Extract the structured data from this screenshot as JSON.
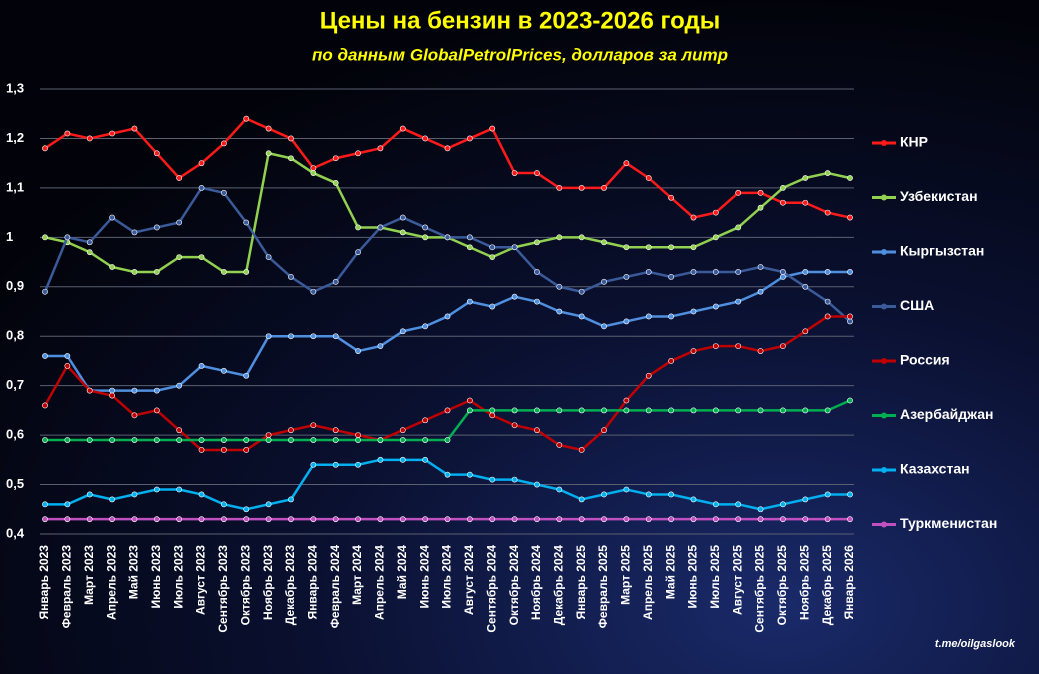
{
  "chart_data": {
    "type": "line",
    "title": "Цены на бензин в 2023-2026  годы",
    "subtitle": "по данным GlobalPetrolPrices,  долларов за литр",
    "source": "t.me/oilgaslook",
    "categories": [
      "Январь 2023",
      "Февраль 2023",
      "Март 2023",
      "Апрель 2023",
      "Май 2023",
      "Июнь 2023",
      "Июль 2023",
      "Август 2023",
      "Сентябрь 2023",
      "Октябрь 2023",
      "Ноябрь 2023",
      "Декабрь 2023",
      "Январь 2024",
      "Февраль 2024",
      "Март 2024",
      "Апрель 2024",
      "Май 2024",
      "Июнь 2024",
      "Июль 2024",
      "Август 2024",
      "Сентябрь 2024",
      "Октябрь 2024",
      "Ноябрь 2024",
      "Декабрь 2024",
      "Январь 2025",
      "Февраль 2025",
      "Март 2025",
      "Апрель 2025",
      "Май 2025",
      "Июнь 2025",
      "Июль 2025",
      "Август 2025",
      "Сентябрь 2025",
      "Октябрь 2025",
      "Ноябрь 2025",
      "Декабрь 2025",
      "Январь 2026"
    ],
    "ylim": [
      0.4,
      1.3
    ],
    "yticks": [
      {
        "value": 0.4,
        "label": "0,4"
      },
      {
        "value": 0.5,
        "label": "0,5"
      },
      {
        "value": 0.6,
        "label": "0,6"
      },
      {
        "value": 0.7,
        "label": "0,7"
      },
      {
        "value": 0.8,
        "label": "0,8"
      },
      {
        "value": 0.9,
        "label": "0,9"
      },
      1,
      {
        "value": 1.1,
        "label": "1,1"
      },
      {
        "value": 1.2,
        "label": "1,2"
      },
      {
        "value": 1.3,
        "label": "1,3"
      }
    ],
    "grid": true,
    "legend": "right",
    "series": [
      {
        "name": "КНР",
        "color": "#ff1a1a",
        "values": [
          1.18,
          1.21,
          1.2,
          1.21,
          1.22,
          1.17,
          1.12,
          1.15,
          1.19,
          1.24,
          1.22,
          1.2,
          1.14,
          1.16,
          1.17,
          1.18,
          1.22,
          1.2,
          1.18,
          1.2,
          1.22,
          1.13,
          1.13,
          1.1,
          1.1,
          1.1,
          1.15,
          1.12,
          1.08,
          1.04,
          1.05,
          1.09,
          1.09,
          1.07,
          1.07,
          1.05,
          1.04
        ]
      },
      {
        "name": "Узбекистан",
        "color": "#92d050",
        "values": [
          1.0,
          0.99,
          0.97,
          0.94,
          0.93,
          0.93,
          0.96,
          0.96,
          0.93,
          0.93,
          1.17,
          1.16,
          1.13,
          1.11,
          1.02,
          1.02,
          1.01,
          1.0,
          1.0,
          0.98,
          0.96,
          0.98,
          0.99,
          1.0,
          1.0,
          0.99,
          0.98,
          0.98,
          0.98,
          0.98,
          1.0,
          1.02,
          1.06,
          1.1,
          1.12,
          1.13,
          1.12
        ]
      },
      {
        "name": "Кыргызстан",
        "color": "#4f8fe0",
        "values": [
          0.76,
          0.76,
          0.69,
          0.69,
          0.69,
          0.69,
          0.7,
          0.74,
          0.73,
          0.72,
          0.8,
          0.8,
          0.8,
          0.8,
          0.77,
          0.78,
          0.81,
          0.82,
          0.84,
          0.87,
          0.86,
          0.88,
          0.87,
          0.85,
          0.84,
          0.82,
          0.83,
          0.84,
          0.84,
          0.85,
          0.86,
          0.87,
          0.89,
          0.92,
          0.93,
          0.93,
          0.93
        ]
      },
      {
        "name": "США",
        "color": "#3a5a9a",
        "values": [
          0.89,
          1.0,
          0.99,
          1.04,
          1.01,
          1.02,
          1.03,
          1.1,
          1.09,
          1.03,
          0.96,
          0.92,
          0.89,
          0.91,
          0.97,
          1.02,
          1.04,
          1.02,
          1.0,
          1.0,
          0.98,
          0.98,
          0.93,
          0.9,
          0.89,
          0.91,
          0.92,
          0.93,
          0.92,
          0.93,
          0.93,
          0.93,
          0.94,
          0.93,
          0.9,
          0.87,
          0.83
        ]
      },
      {
        "name": "Россия",
        "color": "#c00000",
        "values": [
          0.66,
          0.74,
          0.69,
          0.68,
          0.64,
          0.65,
          0.61,
          0.57,
          0.57,
          0.57,
          0.6,
          0.61,
          0.62,
          0.61,
          0.6,
          0.59,
          0.61,
          0.63,
          0.65,
          0.67,
          0.64,
          0.62,
          0.61,
          0.58,
          0.57,
          0.61,
          0.67,
          0.72,
          0.75,
          0.77,
          0.78,
          0.78,
          0.77,
          0.78,
          0.81,
          0.84,
          0.84
        ]
      },
      {
        "name": "Азербайджан",
        "color": "#00b050",
        "values": [
          0.59,
          0.59,
          0.59,
          0.59,
          0.59,
          0.59,
          0.59,
          0.59,
          0.59,
          0.59,
          0.59,
          0.59,
          0.59,
          0.59,
          0.59,
          0.59,
          0.59,
          0.59,
          0.59,
          0.65,
          0.65,
          0.65,
          0.65,
          0.65,
          0.65,
          0.65,
          0.65,
          0.65,
          0.65,
          0.65,
          0.65,
          0.65,
          0.65,
          0.65,
          0.65,
          0.65,
          0.67
        ]
      },
      {
        "name": "Казахстан",
        "color": "#00b0f0",
        "values": [
          0.46,
          0.46,
          0.48,
          0.47,
          0.48,
          0.49,
          0.49,
          0.48,
          0.46,
          0.45,
          0.46,
          0.47,
          0.54,
          0.54,
          0.54,
          0.55,
          0.55,
          0.55,
          0.52,
          0.52,
          0.51,
          0.51,
          0.5,
          0.49,
          0.47,
          0.48,
          0.49,
          0.48,
          0.48,
          0.47,
          0.46,
          0.46,
          0.45,
          0.46,
          0.47,
          0.48,
          0.48
        ]
      },
      {
        "name": "Туркменистан",
        "color": "#c050c0",
        "values": [
          0.43,
          0.43,
          0.43,
          0.43,
          0.43,
          0.43,
          0.43,
          0.43,
          0.43,
          0.43,
          0.43,
          0.43,
          0.43,
          0.43,
          0.43,
          0.43,
          0.43,
          0.43,
          0.43,
          0.43,
          0.43,
          0.43,
          0.43,
          0.43,
          0.43,
          0.43,
          0.43,
          0.43,
          0.43,
          0.43,
          0.43,
          0.43,
          0.43,
          0.43,
          0.43,
          0.43,
          0.43
        ]
      }
    ]
  }
}
